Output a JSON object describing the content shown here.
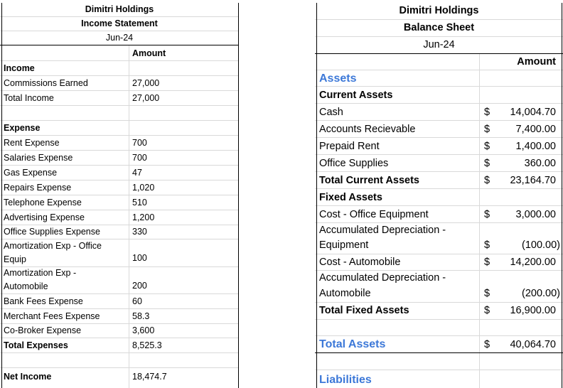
{
  "income_statement": {
    "company": "Dimitri Holdings",
    "title": "Income Statement",
    "period": "Jun-24",
    "amount_header": "Amount",
    "income_heading": "Income",
    "commissions_label": "Commissions Earned",
    "commissions_value": "27,000",
    "total_income_label": "Total Income",
    "total_income_value": "27,000",
    "expense_heading": "Expense",
    "expenses": [
      {
        "label": "Rent Expense",
        "value": "700"
      },
      {
        "label": "Salaries Expense",
        "value": "700"
      },
      {
        "label": "Gas Expense",
        "value": "47"
      },
      {
        "label": "Repairs Expense",
        "value": "1,020"
      },
      {
        "label": "Telephone Expense",
        "value": "510"
      },
      {
        "label": "Advertising Expense",
        "value": "1,200"
      },
      {
        "label": "Office Supplies Expense",
        "value": "330"
      },
      {
        "label": "Amortization Exp - Office Equip",
        "value": "100"
      },
      {
        "label": "Amortization Exp - Automobile",
        "value": "200"
      },
      {
        "label": "Bank Fees Expense",
        "value": "60"
      },
      {
        "label": "Merchant Fees Expense",
        "value": "58.3"
      },
      {
        "label": "Co-Broker Expense",
        "value": "3,600"
      }
    ],
    "total_expenses_label": "Total Expenses",
    "total_expenses_value": "8,525.3",
    "net_income_label": "Net Income",
    "net_income_value": "18,474.7"
  },
  "balance_sheet": {
    "company": "Dimitri Holdings",
    "title": "Balance Sheet",
    "period": "Jun-24",
    "amount_header": "Amount",
    "assets_heading": "Assets",
    "current_assets_heading": "Current Assets",
    "current_assets": [
      {
        "label": "Cash",
        "dollar": "$",
        "value": "14,004.70"
      },
      {
        "label": "Accounts Recievable",
        "dollar": "$",
        "value": "7,400.00"
      },
      {
        "label": "Prepaid Rent",
        "dollar": "$",
        "value": "1,400.00"
      },
      {
        "label": "Office Supplies",
        "dollar": "$",
        "value": "360.00"
      }
    ],
    "total_current_assets_label": "Total Current Assets",
    "total_current_assets_value": "23,164.70",
    "fixed_assets_heading": "Fixed Assets",
    "cost_office_equipment_label": "Cost - Office Equipment",
    "cost_office_equipment_value": "3,000.00",
    "accum_dep_equipment_label_1": "Accumulated Depreciation -",
    "accum_dep_equipment_label_2": "Equipment",
    "accum_dep_equipment_value": "(100.00)",
    "cost_automobile_label": "Cost - Automobile",
    "cost_automobile_value": "14,200.00",
    "accum_dep_automobile_label_1": "Accumulated Depreciation -",
    "accum_dep_automobile_label_2": "Automobile",
    "accum_dep_automobile_value": "(200.00)",
    "total_fixed_assets_label": "Total Fixed Assets",
    "total_fixed_assets_value": "16,900.00",
    "total_assets_label": "Total Assets",
    "total_assets_value": "40,064.70",
    "liabilities_heading": "Liabilities",
    "dollar_sign": "$",
    "accent_color": "#3c78d8"
  }
}
